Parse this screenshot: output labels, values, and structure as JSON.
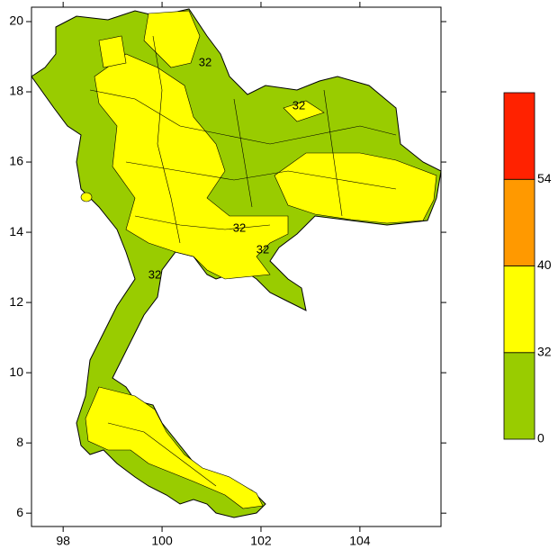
{
  "map": {
    "xlim": [
      97.36,
      105.64
    ],
    "ylim": [
      5.62,
      20.41
    ],
    "xticks": [
      98,
      100,
      102,
      104
    ],
    "yticks": [
      6,
      8,
      10,
      12,
      14,
      16,
      18,
      20
    ],
    "contour_labels": [
      32,
      32,
      32,
      32,
      32
    ],
    "colorbar": {
      "levels": [
        0,
        32,
        40,
        54
      ],
      "colors": [
        "#99cc00",
        "#ffff00",
        "#ff9900",
        "#ff2200"
      ]
    }
  }
}
